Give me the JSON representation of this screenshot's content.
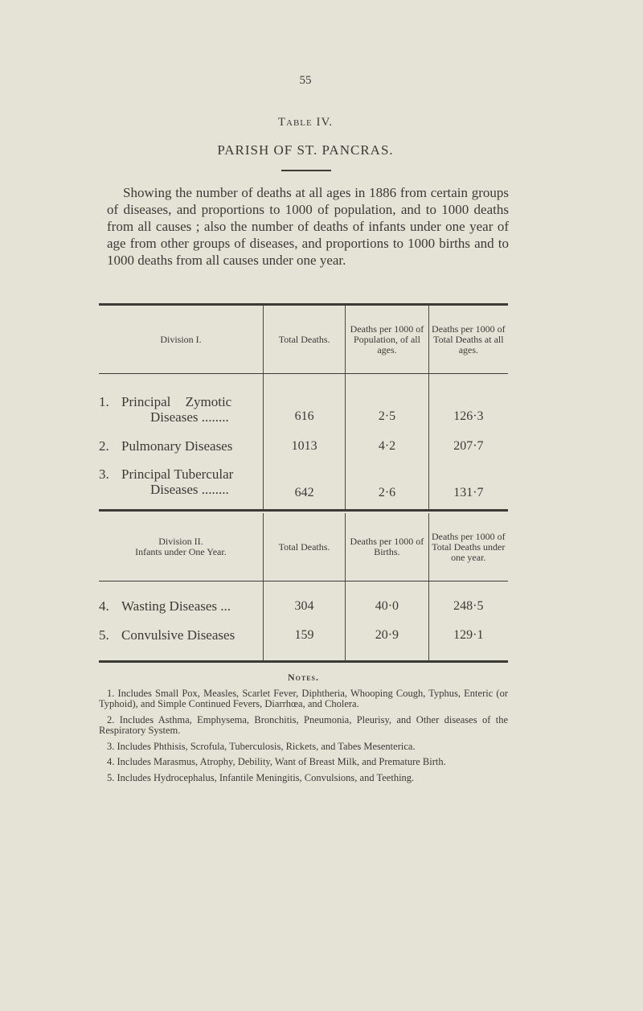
{
  "page_number": "55",
  "table_label": "Table IV.",
  "title": "PARISH OF ST. PANCRAS.",
  "intro": "Showing the number of deaths at all ages in 1886 from certain groups of diseases, and proportions to 1000 of population, and to 1000 deaths from all causes ; also the number of deaths of infants under one year of age from other groups of diseases, and proportions to 1000 births and to 1000 deaths from all causes under one year.",
  "division1": {
    "headers": [
      "Division I.",
      "Total Deaths.",
      "Deaths per 1000 of Population, of all ages.",
      "Deaths per 1000 of Total Deaths at all ages."
    ],
    "rows": [
      {
        "num": "1.",
        "line1": "Principal Zymotic",
        "line2": "Diseases ........",
        "total": "616",
        "per_pop": "2·5",
        "per_deaths": "126·3"
      },
      {
        "num": "2.",
        "line1": "Pulmonary Diseases",
        "line2": "",
        "total": "1013",
        "per_pop": "4·2",
        "per_deaths": "207·7"
      },
      {
        "num": "3.",
        "line1": "Principal Tubercular",
        "line2": "Diseases ........",
        "total": "642",
        "per_pop": "2·6",
        "per_deaths": "131·7"
      }
    ]
  },
  "division2": {
    "headers": [
      "Division II.",
      "Infants under One Year.",
      "Total Deaths.",
      "Deaths per 1000 of Births.",
      "Deaths per 1000 of Total Deaths under one year."
    ],
    "rows": [
      {
        "num": "4.",
        "name": "Wasting Diseases ...",
        "total": "304",
        "per_births": "40·0",
        "per_deaths": "248·5"
      },
      {
        "num": "5.",
        "name": "Convulsive Diseases",
        "total": "159",
        "per_births": "20·9",
        "per_deaths": "129·1"
      }
    ]
  },
  "notes": {
    "heading": "Notes.",
    "items": [
      "1. Includes Small Pox, Measles, Scarlet Fever, Diphtheria, Whooping Cough, Typhus, Enteric (or Typhoid), and Simple Continued Fevers, Diarrhœa, and Cholera.",
      "2. Includes Asthma, Emphysema, Bronchitis, Pneumonia, Pleurisy, and Other diseases of the Respiratory System.",
      "3. Includes Phthisis, Scrofula, Tuberculosis, Rickets, and Tabes Mesenterica.",
      "4. Includes Marasmus, Atrophy, Debility, Want of Breast Milk, and Premature Birth.",
      "5. Includes Hydrocephalus, Infantile Meningitis, Convulsions, and Teething."
    ]
  }
}
